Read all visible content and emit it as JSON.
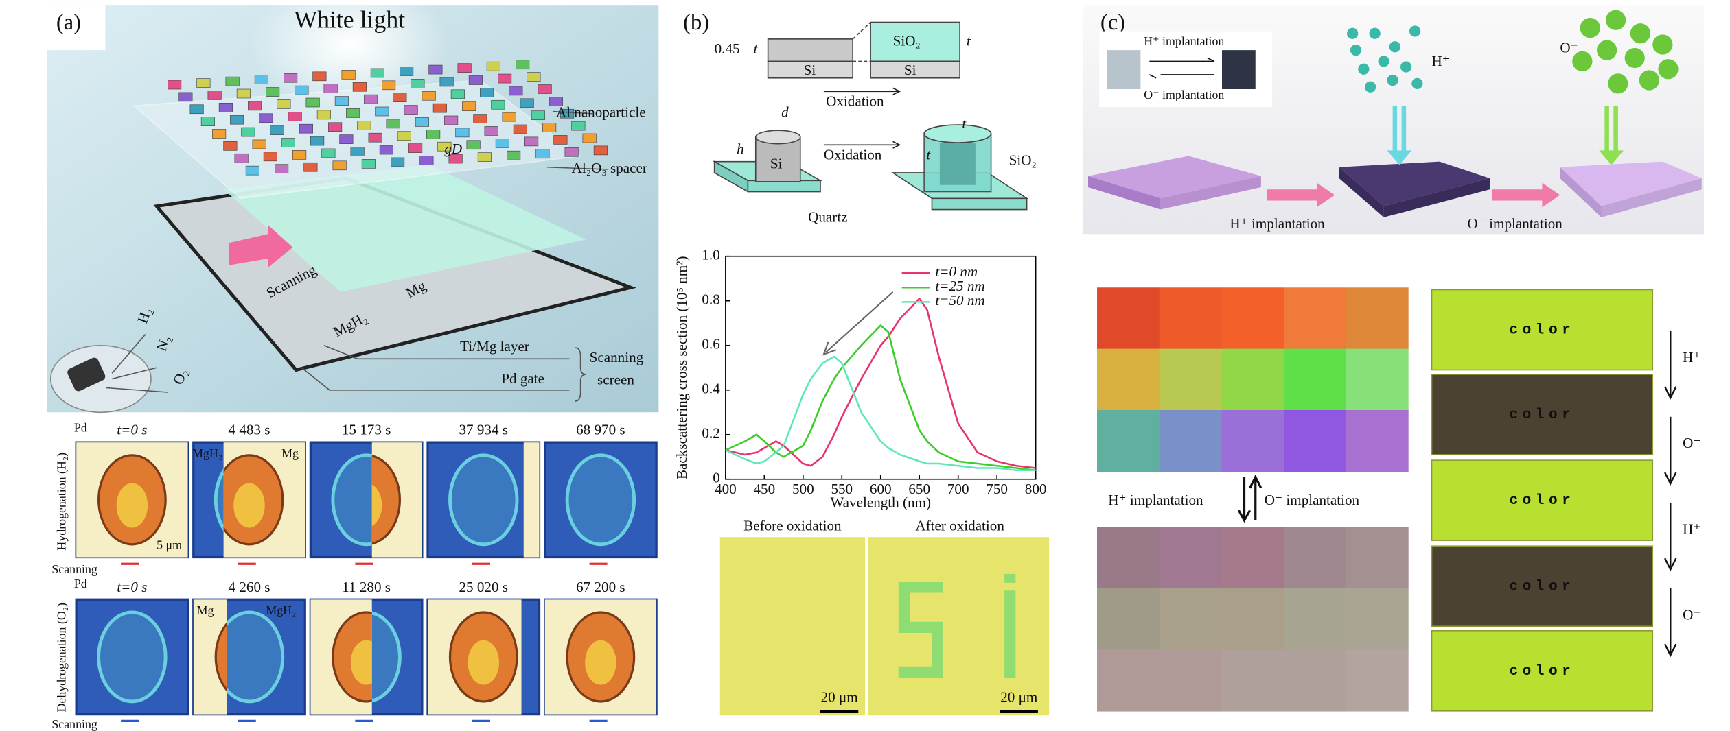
{
  "panel_a": {
    "label": "(a)",
    "title": "White light",
    "particle": "Al nanoparticle",
    "spacer": "Al₂O₃ spacer",
    "gap": "gD",
    "scanning": "Scanning",
    "mgh2": "MgH₂",
    "mg": "Mg",
    "layer": "Ti/Mg layer",
    "gate": "Pd gate",
    "screen": [
      "Scanning",
      "screen"
    ],
    "gases": [
      "H₂",
      "N₂",
      "O₂"
    ],
    "hydrogenation": {
      "axis": "Hydrogenation (H₂)",
      "pd": "Pd",
      "scanning": "Scanning",
      "times": [
        "t=0 s",
        "4 483 s",
        "15 173 s",
        "37 934 s",
        "68 970 s"
      ],
      "phases": [
        "MgH₂",
        "Mg"
      ],
      "scale": "5 μm"
    },
    "dehydrogenation": {
      "axis": "Dehydrogenation (O₂)",
      "pd": "Pd",
      "scanning": "Scanning",
      "times": [
        "t=0 s",
        "4 260 s",
        "11 280 s",
        "25 020 s",
        "67 200 s"
      ],
      "phases": [
        "Mg",
        "MgH₂"
      ]
    }
  },
  "panel_b": {
    "label": "(b)",
    "schematic": {
      "ratio": "0.45",
      "t": "t",
      "si": "Si",
      "sio2": "SiO₂",
      "oxidation": "Oxidation",
      "d": "d",
      "h": "h",
      "quartz": "Quartz"
    },
    "micrographs": {
      "before": "Before oxidation",
      "after": "After oxidation",
      "scale": "20 μm"
    }
  },
  "chart_data": {
    "type": "line",
    "xlabel": "Wavelength (nm)",
    "ylabel": "Backscattering cross section (10⁵ nm²)",
    "x": [
      400,
      425,
      440,
      450,
      465,
      475,
      500,
      510,
      525,
      540,
      550,
      575,
      600,
      610,
      625,
      650,
      660,
      675,
      700,
      725,
      750,
      775,
      800
    ],
    "series": [
      {
        "name": "t=0 nm",
        "color": "#e8336b",
        "values": [
          0.13,
          0.11,
          0.12,
          0.14,
          0.17,
          0.15,
          0.07,
          0.06,
          0.1,
          0.2,
          0.28,
          0.45,
          0.6,
          0.64,
          0.72,
          0.81,
          0.76,
          0.55,
          0.25,
          0.12,
          0.08,
          0.06,
          0.05
        ]
      },
      {
        "name": "t=25 nm",
        "color": "#3ccc2c",
        "values": [
          0.13,
          0.17,
          0.2,
          0.17,
          0.12,
          0.1,
          0.15,
          0.22,
          0.35,
          0.45,
          0.5,
          0.6,
          0.69,
          0.66,
          0.45,
          0.22,
          0.17,
          0.12,
          0.08,
          0.07,
          0.06,
          0.05,
          0.04
        ]
      },
      {
        "name": "t=50 nm",
        "color": "#5ee8b8",
        "values": [
          0.13,
          0.09,
          0.07,
          0.08,
          0.12,
          0.15,
          0.38,
          0.45,
          0.52,
          0.55,
          0.52,
          0.3,
          0.17,
          0.14,
          0.11,
          0.08,
          0.07,
          0.07,
          0.06,
          0.05,
          0.05,
          0.04,
          0.04
        ]
      }
    ],
    "xlim": [
      400,
      800
    ],
    "xticks": [
      400,
      450,
      500,
      550,
      600,
      650,
      700,
      750,
      800
    ],
    "ylim": [
      0,
      1
    ],
    "yticks": [
      0,
      0.2,
      0.4,
      0.6,
      0.8,
      {
        "value": 1,
        "label": "1.0"
      }
    ],
    "legend": "top-right"
  },
  "panel_c": {
    "label": "(c)",
    "h_ion": "H⁺",
    "o_ion": "O⁻",
    "h_impl": "H⁺ implantation",
    "o_impl": "O⁻ implantation",
    "strip_word": "color",
    "steps": [
      "H⁺",
      "O⁻",
      "H⁺",
      "O⁻"
    ]
  }
}
